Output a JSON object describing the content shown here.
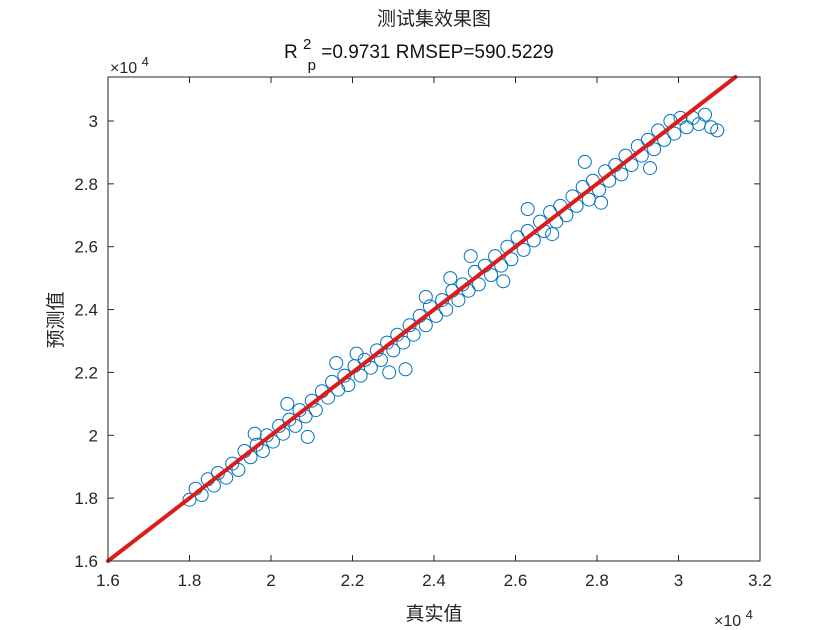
{
  "chart_data": {
    "type": "scatter",
    "title": "测试集效果图",
    "subtitle": {
      "r": "R",
      "sup": "2",
      "sub": "p",
      "rest": "=0.9731  RMSEP=590.5229"
    },
    "xlabel": "真实值",
    "ylabel": "预测值",
    "xlim": [
      16000,
      32000
    ],
    "ylim": [
      16000,
      31400
    ],
    "x_ticks": [
      16000,
      18000,
      20000,
      22000,
      24000,
      26000,
      28000,
      30000,
      32000
    ],
    "y_ticks": [
      16000,
      18000,
      20000,
      22000,
      24000,
      26000,
      28000,
      30000
    ],
    "x_tick_labels": [
      "1.6",
      "1.8",
      "2",
      "2.2",
      "2.4",
      "2.6",
      "2.8",
      "3",
      "3.2"
    ],
    "y_tick_labels": [
      "1.6",
      "1.8",
      "2",
      "2.2",
      "2.4",
      "2.6",
      "2.8",
      "3"
    ],
    "x_exponent": {
      "base": "×10",
      "power": "4"
    },
    "y_exponent": {
      "base": "×10",
      "power": "4"
    },
    "grid": false,
    "marker": "open-circle",
    "marker_color": "#0072BD",
    "line_color": "#DD1C1A",
    "reference_line": {
      "type": "y=x",
      "from": 16000,
      "to": 32000
    },
    "points": [
      [
        18000,
        17950
      ],
      [
        18150,
        18300
      ],
      [
        18300,
        18100
      ],
      [
        18450,
        18600
      ],
      [
        18600,
        18400
      ],
      [
        18700,
        18800
      ],
      [
        18900,
        18650
      ],
      [
        19050,
        19100
      ],
      [
        19200,
        18900
      ],
      [
        19350,
        19500
      ],
      [
        19500,
        19300
      ],
      [
        19650,
        19700
      ],
      [
        19800,
        19500
      ],
      [
        19900,
        20000
      ],
      [
        20050,
        19800
      ],
      [
        20200,
        20300
      ],
      [
        20300,
        20050
      ],
      [
        20450,
        20500
      ],
      [
        20600,
        20300
      ],
      [
        20700,
        20800
      ],
      [
        20850,
        20600
      ],
      [
        21000,
        21100
      ],
      [
        21100,
        20800
      ],
      [
        21250,
        21400
      ],
      [
        21400,
        21200
      ],
      [
        21500,
        21700
      ],
      [
        21650,
        21450
      ],
      [
        21800,
        21900
      ],
      [
        21900,
        21600
      ],
      [
        22050,
        22200
      ],
      [
        22200,
        21900
      ],
      [
        22300,
        22400
      ],
      [
        22450,
        22150
      ],
      [
        22600,
        22700
      ],
      [
        22700,
        22400
      ],
      [
        22850,
        22950
      ],
      [
        23000,
        22700
      ],
      [
        23100,
        23200
      ],
      [
        23250,
        22950
      ],
      [
        23400,
        23500
      ],
      [
        23500,
        23200
      ],
      [
        23650,
        23800
      ],
      [
        23800,
        23500
      ],
      [
        23900,
        24100
      ],
      [
        24050,
        23800
      ],
      [
        24200,
        24300
      ],
      [
        24300,
        24000
      ],
      [
        24450,
        24600
      ],
      [
        24600,
        24300
      ],
      [
        24700,
        24800
      ],
      [
        24850,
        24600
      ],
      [
        25000,
        25200
      ],
      [
        25100,
        24800
      ],
      [
        25250,
        25400
      ],
      [
        25400,
        25100
      ],
      [
        25500,
        25700
      ],
      [
        25650,
        25400
      ],
      [
        25800,
        26000
      ],
      [
        25900,
        25600
      ],
      [
        26050,
        26300
      ],
      [
        26200,
        25900
      ],
      [
        26300,
        26500
      ],
      [
        26450,
        26200
      ],
      [
        26600,
        26800
      ],
      [
        26700,
        26500
      ],
      [
        26850,
        27100
      ],
      [
        27000,
        26800
      ],
      [
        27100,
        27300
      ],
      [
        27250,
        27000
      ],
      [
        27400,
        27600
      ],
      [
        27500,
        27300
      ],
      [
        27650,
        27900
      ],
      [
        27800,
        27500
      ],
      [
        27900,
        28100
      ],
      [
        28050,
        27800
      ],
      [
        28200,
        28400
      ],
      [
        28300,
        28100
      ],
      [
        28450,
        28600
      ],
      [
        28600,
        28300
      ],
      [
        28700,
        28900
      ],
      [
        28850,
        28600
      ],
      [
        29000,
        29200
      ],
      [
        29100,
        28900
      ],
      [
        29250,
        29400
      ],
      [
        29400,
        29100
      ],
      [
        29500,
        29700
      ],
      [
        29650,
        29400
      ],
      [
        29800,
        30000
      ],
      [
        29900,
        29600
      ],
      [
        30050,
        30100
      ],
      [
        30200,
        29800
      ],
      [
        30350,
        30100
      ],
      [
        30500,
        29900
      ],
      [
        30650,
        30200
      ],
      [
        30800,
        29800
      ],
      [
        30950,
        29700
      ],
      [
        19600,
        20050
      ],
      [
        20900,
        19950
      ],
      [
        22100,
        22600
      ],
      [
        23300,
        22100
      ],
      [
        24400,
        25000
      ],
      [
        25700,
        24900
      ],
      [
        26900,
        26400
      ],
      [
        28100,
        27400
      ],
      [
        29300,
        28500
      ],
      [
        21600,
        22300
      ],
      [
        24900,
        25700
      ],
      [
        26300,
        27200
      ],
      [
        27700,
        28700
      ],
      [
        23800,
        24400
      ],
      [
        22900,
        22000
      ],
      [
        20400,
        21000
      ]
    ]
  }
}
